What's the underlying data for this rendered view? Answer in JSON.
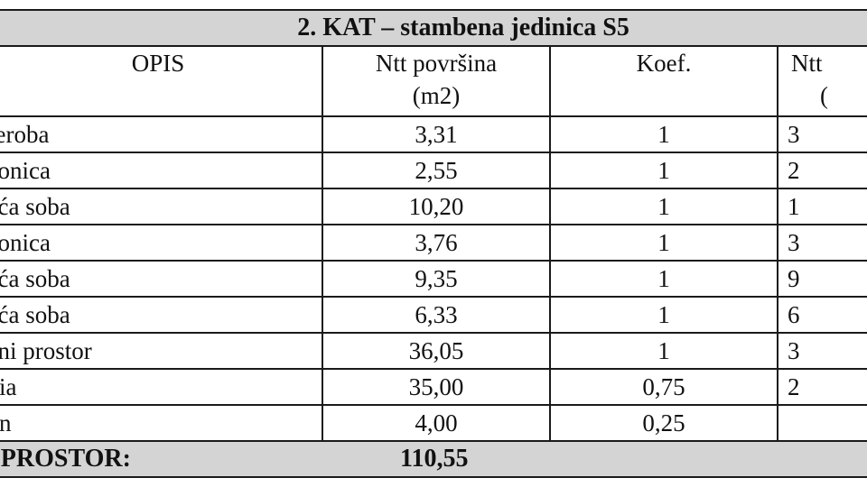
{
  "table": {
    "title": "2.   KAT – stambena jedinica S5",
    "headers": {
      "opis": "OPIS",
      "ntt_area_line1": "Ntt površina",
      "ntt_area_line2": "(m2)",
      "koef": "Koef.",
      "ntt_partial_line1": "Ntt",
      "ntt_partial_line2": "("
    },
    "rows": [
      {
        "opis": "rderoba",
        "area": "3,31",
        "koef": "1",
        "partial": "3"
      },
      {
        "opis": "paonica",
        "area": "2,55",
        "koef": "1",
        "partial": "2"
      },
      {
        "opis": "vaća soba",
        "area": "10,20",
        "koef": "1",
        "partial": "1"
      },
      {
        "opis": "paonica",
        "area": "3,76",
        "koef": "1",
        "partial": "3"
      },
      {
        "opis": "vaća soba",
        "area": "9,35",
        "koef": "1",
        "partial": "9"
      },
      {
        "opis": "vaća soba",
        "area": "6,33",
        "koef": "1",
        "partial": "6"
      },
      {
        "opis": "evni prostor",
        "area": "36,05",
        "koef": "1",
        "partial": "3"
      },
      {
        "opis": "ggia",
        "area": "35,00",
        "koef": "0,75",
        "partial": "2"
      },
      {
        "opis": "kon",
        "area": "4,00",
        "koef": "0,25",
        "partial": ""
      }
    ],
    "total": {
      "label": "O PROSTOR:",
      "value": "110,55"
    }
  }
}
